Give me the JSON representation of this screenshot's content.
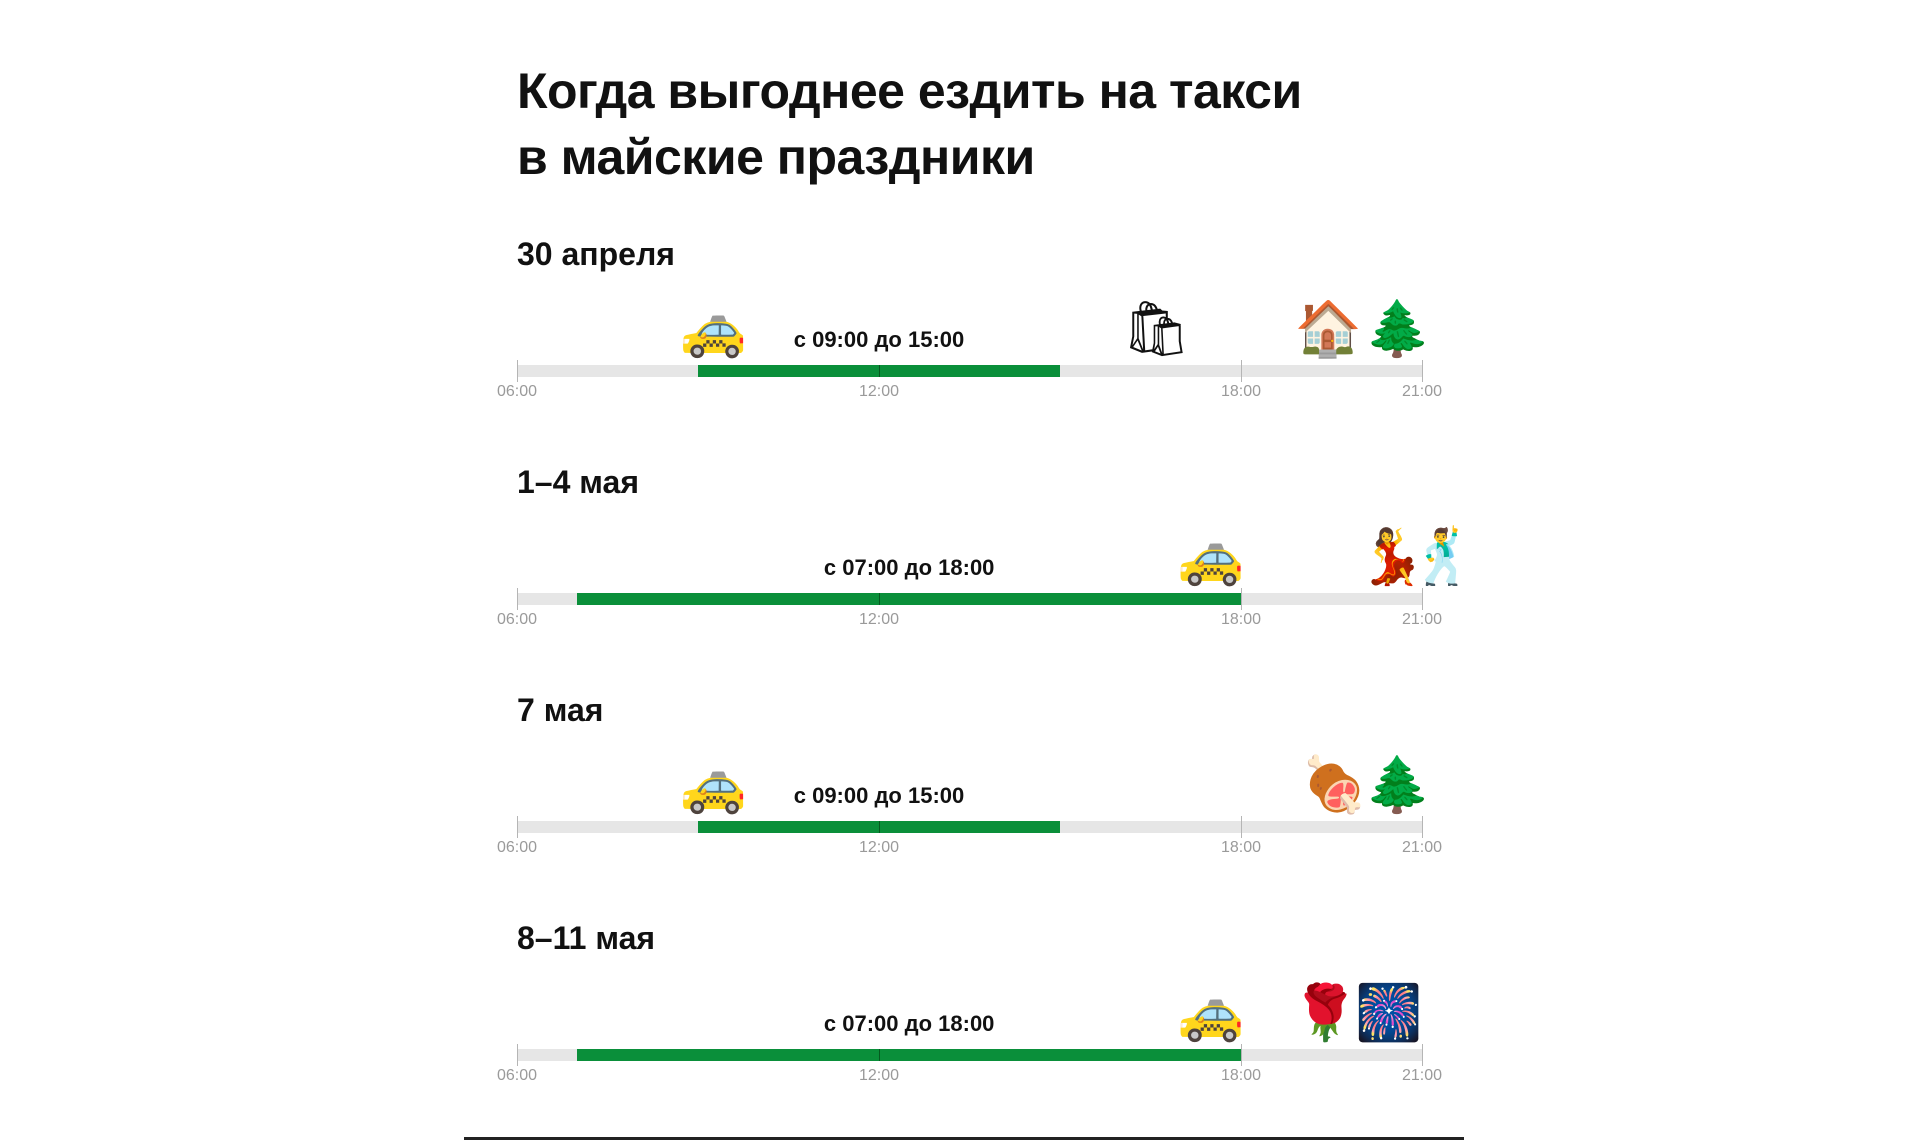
{
  "chart_data": {
    "type": "timeline",
    "title": "Когда выгоднее ездить на такси в майские праздники",
    "title_lines": [
      "Когда выгоднее ездить на такси",
      "в майские праздники"
    ],
    "axis": {
      "range_hours": [
        6,
        21
      ],
      "ticks": [
        "06:00",
        "12:00",
        "18:00",
        "21:00"
      ]
    },
    "colors": {
      "highlight": "#0a8f3a",
      "track": "#e6e6e6"
    },
    "rows": [
      {
        "label": "30 апреля",
        "start": 9,
        "end": 15,
        "range_label": "с 09:00 до 15:00",
        "icons": [
          {
            "name": "taxi-icon",
            "glyph": "🚕",
            "hour": 9.25
          },
          {
            "name": "shopping-bags-icon",
            "glyph": "🛍",
            "hour": 16.6
          },
          {
            "name": "house-icon",
            "glyph": "🏠",
            "hour": 19.45
          },
          {
            "name": "evergreen-tree-icon",
            "glyph": "🌲",
            "hour": 20.6
          }
        ]
      },
      {
        "label": "1–4 мая",
        "start": 7,
        "end": 18,
        "range_label": "с 07:00 до 18:00",
        "icons": [
          {
            "name": "taxi-icon",
            "glyph": "🚕",
            "hour": 17.5
          },
          {
            "name": "woman-dancing-icon",
            "glyph": "💃",
            "hour": 20.5
          },
          {
            "name": "man-dancing-icon",
            "glyph": "🕺",
            "hour": 21.35
          }
        ]
      },
      {
        "label": "7 мая",
        "start": 9,
        "end": 15,
        "range_label": "с 09:00 до 15:00",
        "icons": [
          {
            "name": "taxi-icon",
            "glyph": "🚕",
            "hour": 9.25
          },
          {
            "name": "meat-on-bone-icon",
            "glyph": "🍖",
            "hour": 19.55
          },
          {
            "name": "evergreen-tree-icon",
            "glyph": "🌲",
            "hour": 20.6
          }
        ]
      },
      {
        "label": "8–11 мая",
        "start": 7,
        "end": 18,
        "range_label": "с 07:00 до 18:00",
        "icons": [
          {
            "name": "taxi-icon",
            "glyph": "🚕",
            "hour": 17.5
          },
          {
            "name": "rose-icon",
            "glyph": "🌹",
            "hour": 19.4
          },
          {
            "name": "fireworks-icon",
            "glyph": "🎆",
            "hour": 20.45
          }
        ]
      }
    ]
  }
}
